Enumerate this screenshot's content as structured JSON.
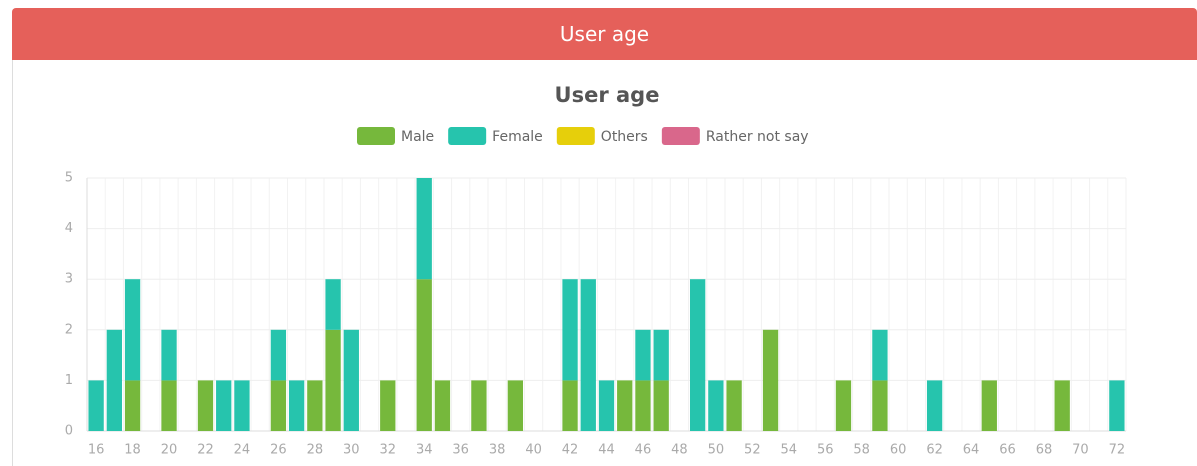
{
  "header": {
    "title": "User age"
  },
  "chart_data": {
    "type": "bar",
    "stacked": true,
    "title": "User age",
    "categories": [
      "16",
      null,
      "18",
      null,
      "20",
      null,
      "22",
      null,
      "24",
      null,
      "26",
      null,
      "28",
      null,
      "30",
      null,
      "32",
      null,
      "34",
      null,
      "36",
      null,
      "38",
      null,
      "40",
      null,
      "42",
      null,
      "44",
      null,
      "46",
      null,
      "48",
      null,
      "50",
      null,
      "52",
      null,
      "54",
      null,
      "56",
      null,
      "58",
      null,
      "60",
      null,
      "62",
      null,
      "64",
      null,
      "66",
      null,
      "68",
      null,
      "70",
      null,
      "72"
    ],
    "series": [
      {
        "name": "Male",
        "color": "#76b83c",
        "values": [
          0,
          0,
          1,
          0,
          1,
          0,
          1,
          0,
          0,
          0,
          1,
          0,
          1,
          2,
          0,
          0,
          1,
          0,
          3,
          1,
          0,
          1,
          0,
          1,
          0,
          0,
          1,
          0,
          0,
          1,
          1,
          1,
          0,
          0,
          0,
          1,
          0,
          2,
          0,
          0,
          0,
          1,
          0,
          1,
          0,
          0,
          0,
          0,
          0,
          1,
          0,
          0,
          0,
          1,
          0,
          0,
          0
        ]
      },
      {
        "name": "Female",
        "color": "#26c4ad",
        "values": [
          1,
          2,
          2,
          0,
          1,
          0,
          0,
          1,
          1,
          0,
          1,
          1,
          0,
          1,
          2,
          0,
          0,
          0,
          2,
          0,
          0,
          0,
          0,
          0,
          0,
          0,
          2,
          3,
          1,
          0,
          1,
          1,
          0,
          3,
          1,
          0,
          0,
          0,
          0,
          0,
          0,
          0,
          0,
          1,
          0,
          0,
          1,
          0,
          0,
          0,
          0,
          0,
          0,
          0,
          0,
          0,
          1
        ]
      },
      {
        "name": "Others",
        "color": "#e6cf0b",
        "values": [
          0,
          0,
          0,
          0,
          0,
          0,
          0,
          0,
          0,
          0,
          0,
          0,
          0,
          0,
          0,
          0,
          0,
          0,
          0,
          0,
          0,
          0,
          0,
          0,
          0,
          0,
          0,
          0,
          0,
          0,
          0,
          0,
          0,
          0,
          0,
          0,
          0,
          0,
          0,
          0,
          0,
          0,
          0,
          0,
          0,
          0,
          0,
          0,
          0,
          0,
          0,
          0,
          0,
          0,
          0,
          0,
          0
        ]
      },
      {
        "name": "Rather not say",
        "color": "#d9678b",
        "values": [
          0,
          0,
          0,
          0,
          0,
          0,
          0,
          0,
          0,
          0,
          0,
          0,
          0,
          0,
          0,
          0,
          0,
          0,
          0,
          0,
          0,
          0,
          0,
          0,
          0,
          0,
          0,
          0,
          0,
          0,
          0,
          0,
          0,
          0,
          0,
          0,
          0,
          0,
          0,
          0,
          0,
          0,
          0,
          0,
          0,
          0,
          0,
          0,
          0,
          0,
          0,
          0,
          0,
          0,
          0,
          0,
          0
        ]
      }
    ],
    "ylim": [
      0,
      5
    ],
    "yticks": [
      0,
      1,
      2,
      3,
      4,
      5
    ],
    "grid": true
  }
}
